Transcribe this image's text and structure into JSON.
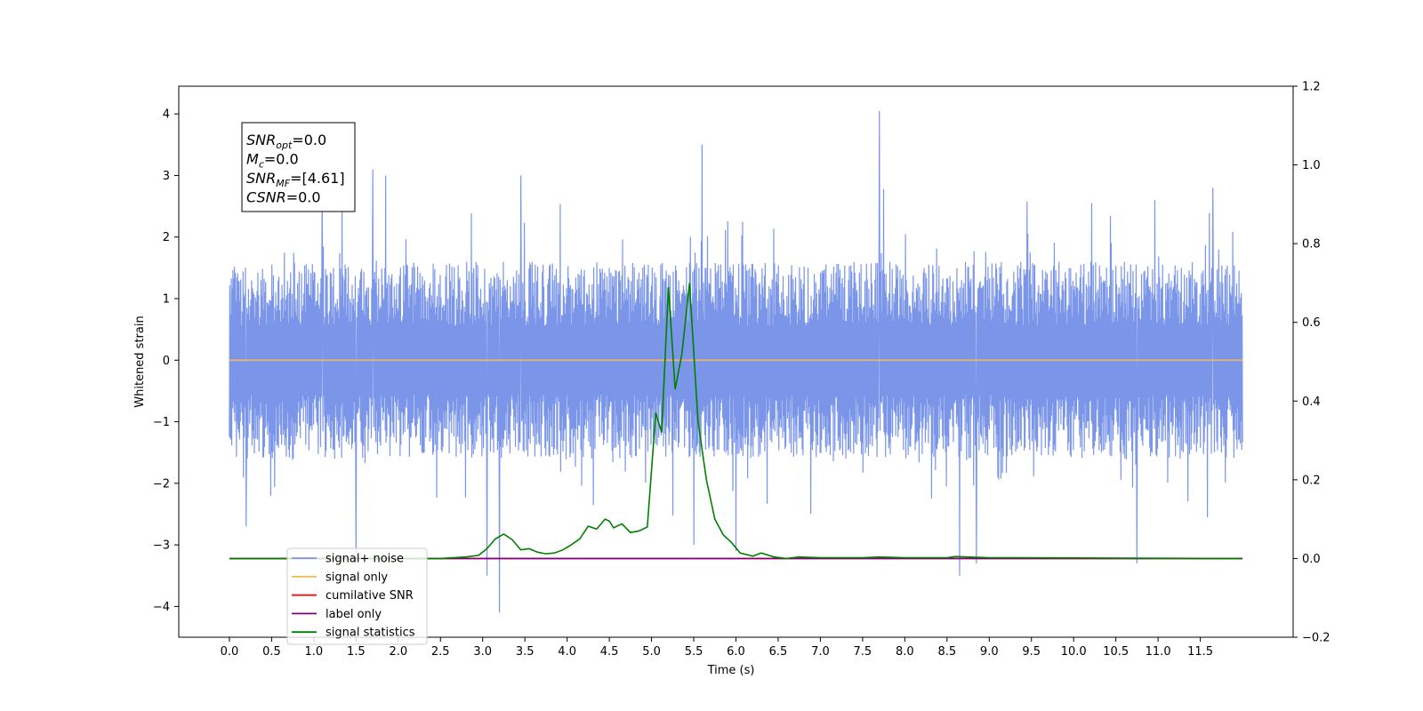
{
  "chart_data": {
    "type": "line",
    "title": "",
    "xlabel": "Time (s)",
    "ylabel": "Whitened strain",
    "xlim": [
      -0.6,
      12.6
    ],
    "ylim": [
      -4.5,
      4.45
    ],
    "ylim_right": [
      -0.2,
      1.2
    ],
    "grid": false,
    "legend_position": "lower-left",
    "x_ticks": [
      "0.0",
      "0.5",
      "1.0",
      "1.5",
      "2.0",
      "2.5",
      "3.0",
      "3.5",
      "4.0",
      "4.5",
      "5.0",
      "5.5",
      "6.0",
      "6.5",
      "7.0",
      "7.5",
      "8.0",
      "8.5",
      "9.0",
      "9.5",
      "10.0",
      "10.5",
      "11.0",
      "11.5"
    ],
    "y_ticks_left": [
      "−4",
      "−3",
      "−2",
      "−1",
      "0",
      "1",
      "2",
      "3",
      "4"
    ],
    "y_ticks_right": [
      "−0.2",
      "0.0",
      "0.2",
      "0.4",
      "0.6",
      "0.8",
      "1.0",
      "1.2"
    ],
    "annotation": [
      {
        "base": "SNR",
        "sub": "opt",
        "value": "=0.0"
      },
      {
        "base": "M",
        "sub": "c",
        "value": "=0.0"
      },
      {
        "base": "SNR",
        "sub": "MF",
        "value": "=[4.61]"
      },
      {
        "base": "CSNR",
        "sub": "",
        "value": "=0.0"
      }
    ],
    "series": [
      {
        "name": "signal+ noise",
        "color": "#7b96e8",
        "axis": "left",
        "x_range": [
          0.0,
          12.0
        ],
        "band_min": -1.6,
        "band_max": 1.6,
        "spikes": [
          {
            "x": 0.2,
            "y": -2.7
          },
          {
            "x": 1.1,
            "y": 3.0
          },
          {
            "x": 1.5,
            "y": -3.3
          },
          {
            "x": 1.7,
            "y": 3.1
          },
          {
            "x": 1.85,
            "y": 3.0
          },
          {
            "x": 3.05,
            "y": -3.5
          },
          {
            "x": 3.2,
            "y": -4.1
          },
          {
            "x": 3.45,
            "y": 3.0
          },
          {
            "x": 5.5,
            "y": -3.0
          },
          {
            "x": 5.6,
            "y": 3.5
          },
          {
            "x": 6.0,
            "y": -3.1
          },
          {
            "x": 7.7,
            "y": 4.05
          },
          {
            "x": 8.65,
            "y": -3.5
          },
          {
            "x": 8.85,
            "y": -3.3
          },
          {
            "x": 10.75,
            "y": -3.3
          },
          {
            "x": 11.65,
            "y": 2.8
          }
        ]
      },
      {
        "name": "signal only",
        "color": "#f5b55f",
        "axis": "left",
        "x": [
          0.0,
          12.0
        ],
        "y": [
          0.0,
          0.0
        ]
      },
      {
        "name": "cumilative SNR",
        "color": "#ff0000",
        "axis": "right",
        "x": [
          0.0,
          12.0
        ],
        "y": [
          0.0,
          0.0
        ]
      },
      {
        "name": "label only",
        "color": "#800080",
        "axis": "right",
        "x": [
          0.0,
          12.0
        ],
        "y": [
          0.0,
          0.0
        ]
      },
      {
        "name": "signal statistics",
        "color": "#008000",
        "axis": "right",
        "x": [
          0.0,
          2.5,
          2.8,
          2.95,
          3.05,
          3.15,
          3.25,
          3.35,
          3.45,
          3.55,
          3.65,
          3.75,
          3.85,
          3.95,
          4.05,
          4.15,
          4.25,
          4.35,
          4.45,
          4.5,
          4.55,
          4.65,
          4.75,
          4.85,
          4.95,
          5.05,
          5.12,
          5.2,
          5.28,
          5.36,
          5.45,
          5.55,
          5.65,
          5.75,
          5.85,
          5.95,
          6.05,
          6.2,
          6.3,
          6.45,
          6.6,
          6.75,
          7.0,
          7.5,
          7.7,
          8.0,
          8.5,
          8.6,
          9.0,
          9.1,
          12.0
        ],
        "y": [
          0.0,
          0.0,
          0.004,
          0.008,
          0.025,
          0.05,
          0.062,
          0.048,
          0.022,
          0.025,
          0.016,
          0.012,
          0.014,
          0.022,
          0.035,
          0.05,
          0.082,
          0.075,
          0.1,
          0.095,
          0.078,
          0.088,
          0.066,
          0.07,
          0.08,
          0.37,
          0.32,
          0.69,
          0.43,
          0.52,
          0.7,
          0.35,
          0.2,
          0.1,
          0.06,
          0.04,
          0.014,
          0.006,
          0.014,
          0.004,
          0.0,
          0.004,
          0.002,
          0.002,
          0.004,
          0.002,
          0.002,
          0.005,
          0.002,
          0.002,
          0.0
        ]
      }
    ]
  }
}
